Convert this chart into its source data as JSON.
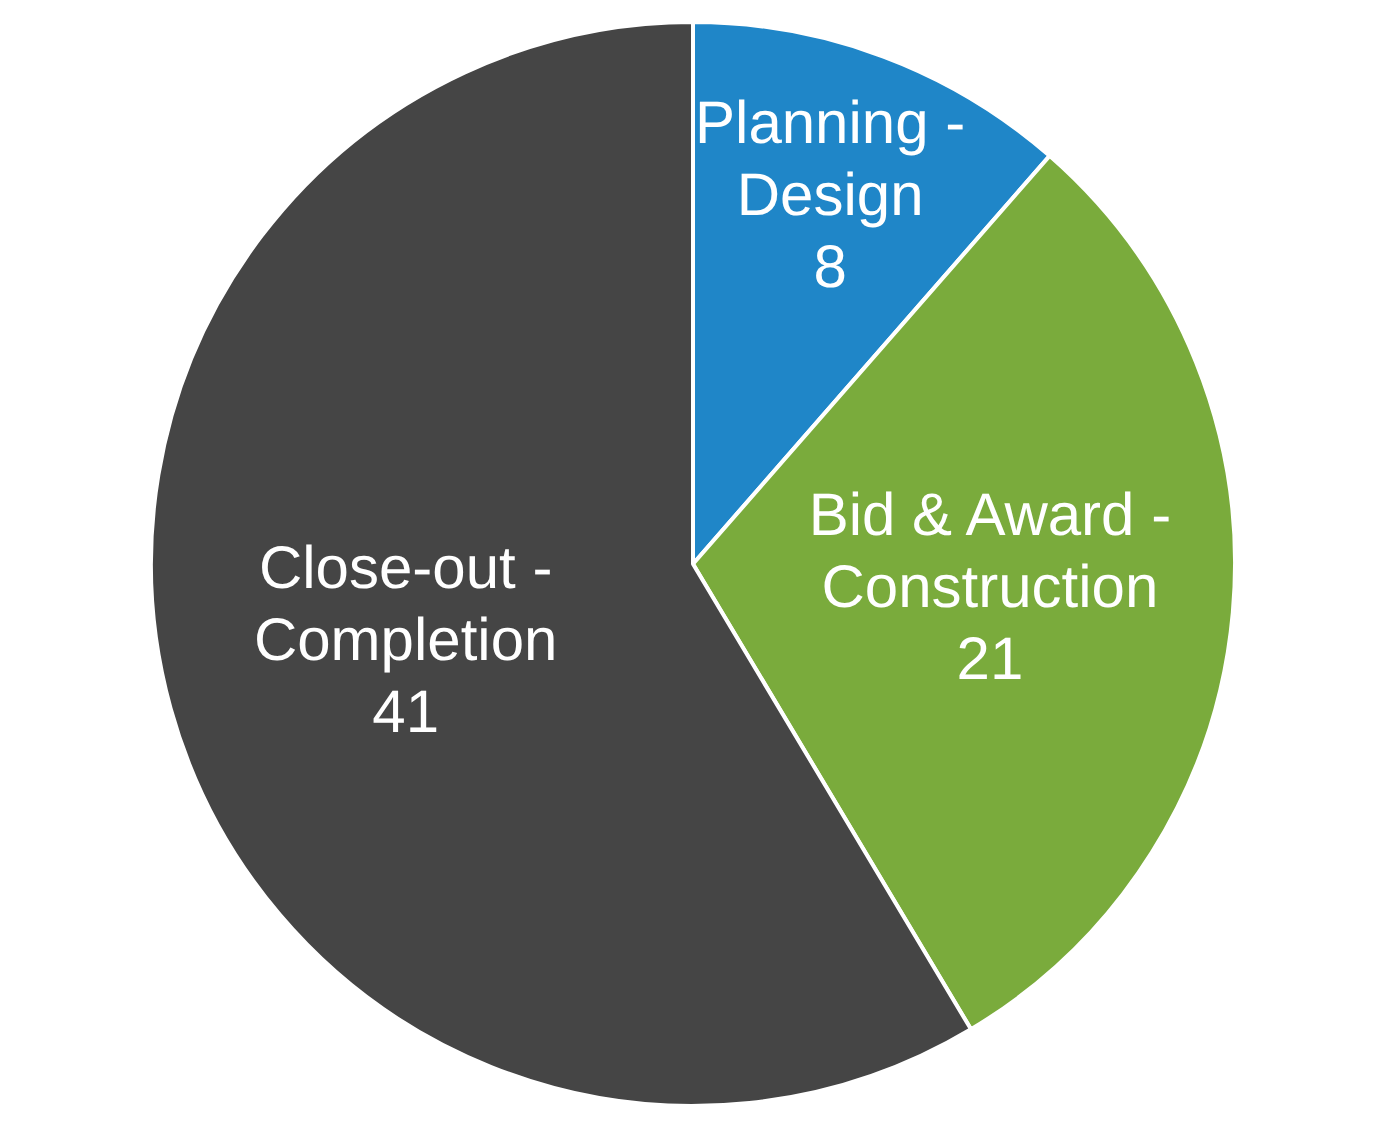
{
  "chart_data": {
    "type": "pie",
    "categories": [
      "Planning - Design",
      "Bid & Award - Construction",
      "Close-out - Completion"
    ],
    "values": [
      8,
      21,
      41
    ],
    "colors": [
      "#1f86c8",
      "#7aab3c",
      "#454545"
    ],
    "data_labels": true,
    "legend": false
  }
}
